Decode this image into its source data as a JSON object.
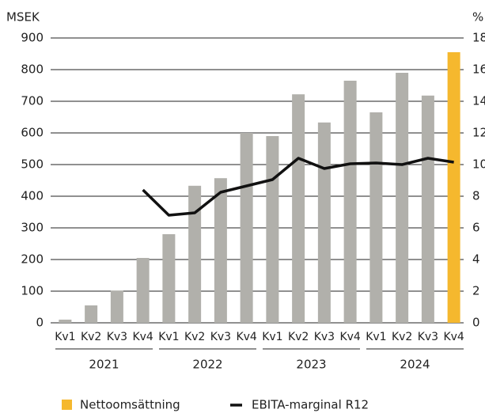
{
  "chart_data": {
    "type": "bar-line",
    "y_label": "MSEK",
    "y2_label": "%",
    "categories": [
      "Kv1",
      "Kv2",
      "Kv3",
      "Kv4",
      "Kv1",
      "Kv2",
      "Kv3",
      "Kv4",
      "Kv1",
      "Kv2",
      "Kv3",
      "Kv4",
      "Kv1",
      "Kv2",
      "Kv3",
      "Kv4"
    ],
    "years": [
      "2021",
      "2022",
      "2023",
      "2024"
    ],
    "series": [
      {
        "name": "Nettoomsättning",
        "type": "bar",
        "color": "#f5b82e",
        "bar_colors": [
          "#b1b0ab",
          "#b1b0ab",
          "#b1b0ab",
          "#b1b0ab",
          "#b1b0ab",
          "#b1b0ab",
          "#b1b0ab",
          "#b1b0ab",
          "#b1b0ab",
          "#b1b0ab",
          "#b1b0ab",
          "#b1b0ab",
          "#b1b0ab",
          "#b1b0ab",
          "#b1b0ab",
          "#f5b82e"
        ],
        "values": [
          10,
          55,
          102,
          205,
          280,
          433,
          457,
          600,
          590,
          722,
          633,
          765,
          665,
          790,
          718,
          855
        ]
      },
      {
        "name": "EBITA-marginal R12",
        "type": "line",
        "axis": "y2",
        "color": "#111111",
        "values": [
          null,
          null,
          null,
          8.4,
          6.8,
          6.95,
          8.25,
          8.65,
          9.05,
          10.4,
          9.75,
          10.05,
          10.1,
          10.0,
          10.4,
          10.15
        ]
      }
    ],
    "ylim": [
      0,
      900
    ],
    "yticks": [
      0,
      100,
      200,
      300,
      400,
      500,
      600,
      700,
      800,
      900
    ],
    "y2lim": [
      0,
      18
    ],
    "y2ticks": [
      0,
      2,
      4,
      6,
      8,
      10,
      12,
      14,
      16,
      18
    ],
    "grid": true,
    "legend": "bottom"
  }
}
